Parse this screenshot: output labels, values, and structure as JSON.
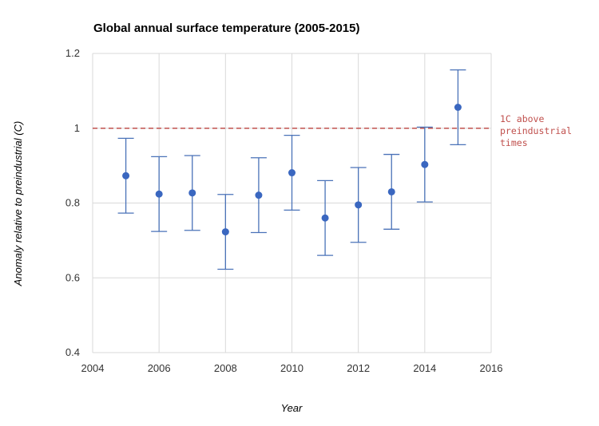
{
  "chart_data": {
    "type": "scatter",
    "title": "Global annual surface temperature (2005-2015)",
    "xlabel": "Year",
    "ylabel": "Anomaly relative to preindustrial (C)",
    "xlim": [
      2004,
      2016
    ],
    "ylim": [
      0.4,
      1.2
    ],
    "x_ticks": [
      "2004",
      "2006",
      "2008",
      "2010",
      "2012",
      "2014",
      "2016"
    ],
    "y_ticks": [
      "0.4",
      "0.6",
      "0.8",
      "1",
      "1.2"
    ],
    "grid": true,
    "series": [
      {
        "points": [
          {
            "x": 2005,
            "y": 0.873,
            "low": 0.773,
            "high": 0.973
          },
          {
            "x": 2006,
            "y": 0.824,
            "low": 0.724,
            "high": 0.924
          },
          {
            "x": 2007,
            "y": 0.827,
            "low": 0.727,
            "high": 0.927
          },
          {
            "x": 2008,
            "y": 0.723,
            "low": 0.623,
            "high": 0.823
          },
          {
            "x": 2009,
            "y": 0.821,
            "low": 0.721,
            "high": 0.921
          },
          {
            "x": 2010,
            "y": 0.881,
            "low": 0.781,
            "high": 0.981
          },
          {
            "x": 2011,
            "y": 0.76,
            "low": 0.66,
            "high": 0.86
          },
          {
            "x": 2012,
            "y": 0.795,
            "low": 0.695,
            "high": 0.895
          },
          {
            "x": 2013,
            "y": 0.83,
            "low": 0.73,
            "high": 0.93
          },
          {
            "x": 2014,
            "y": 0.903,
            "low": 0.803,
            "high": 1.003
          },
          {
            "x": 2015,
            "y": 1.056,
            "low": 0.956,
            "high": 1.156
          }
        ]
      }
    ],
    "reference_line": {
      "y": 1.0,
      "label_lines": [
        "1C above",
        "preindustrial",
        "times"
      ]
    },
    "colors": {
      "point": "#3a67c0",
      "errorbar": "#4a72b8",
      "reference": "#c0504d",
      "grid": "#d9d9d9"
    }
  }
}
